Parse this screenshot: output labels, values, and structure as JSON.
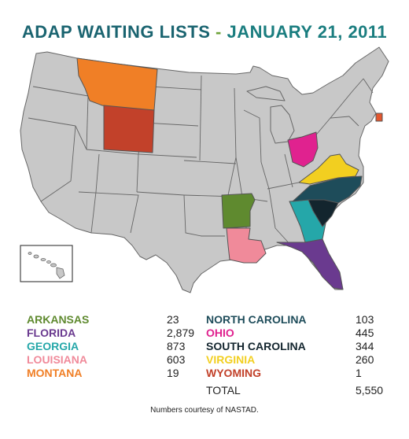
{
  "title": {
    "main": "ADAP WAITING LISTS",
    "separator": " - ",
    "date": "JANUARY 21, 2011"
  },
  "colors": {
    "state_fill": "#c8c8c8",
    "state_stroke": "#666666",
    "arkansas": "#5f8a2f",
    "florida": "#6a3a8f",
    "georgia": "#25a7a9",
    "louisiana": "#f08a9a",
    "montana": "#f07f26",
    "north_carolina": "#1e4c5a",
    "ohio": "#e0228f",
    "south_carolina": "#13252e",
    "virginia": "#f2cf20",
    "wyoming": "#c2412a",
    "rhode_island": "#e4572e"
  },
  "legend_left": [
    {
      "state": "ARKANSAS",
      "count": "23",
      "color": "#5f8a2f"
    },
    {
      "state": "FLORIDA",
      "count": "2,879",
      "color": "#6a3a8f"
    },
    {
      "state": "GEORGIA",
      "count": "873",
      "color": "#25a7a9"
    },
    {
      "state": "LOUISIANA",
      "count": "603",
      "color": "#f08a9a"
    },
    {
      "state": "MONTANA",
      "count": "19",
      "color": "#f07f26"
    }
  ],
  "legend_right": [
    {
      "state": "NORTH CAROLINA",
      "count": "103",
      "color": "#1e4c5a"
    },
    {
      "state": "OHIO",
      "count": "445",
      "color": "#e0228f"
    },
    {
      "state": "SOUTH CAROLINA",
      "count": "344",
      "color": "#13252e"
    },
    {
      "state": "VIRGINIA",
      "count": "260",
      "color": "#f2cf20"
    },
    {
      "state": "WYOMING",
      "count": "1",
      "color": "#c2412a"
    }
  ],
  "total": {
    "label": "TOTAL",
    "value": "5,550"
  },
  "credit": "Numbers courtesy of NASTAD."
}
